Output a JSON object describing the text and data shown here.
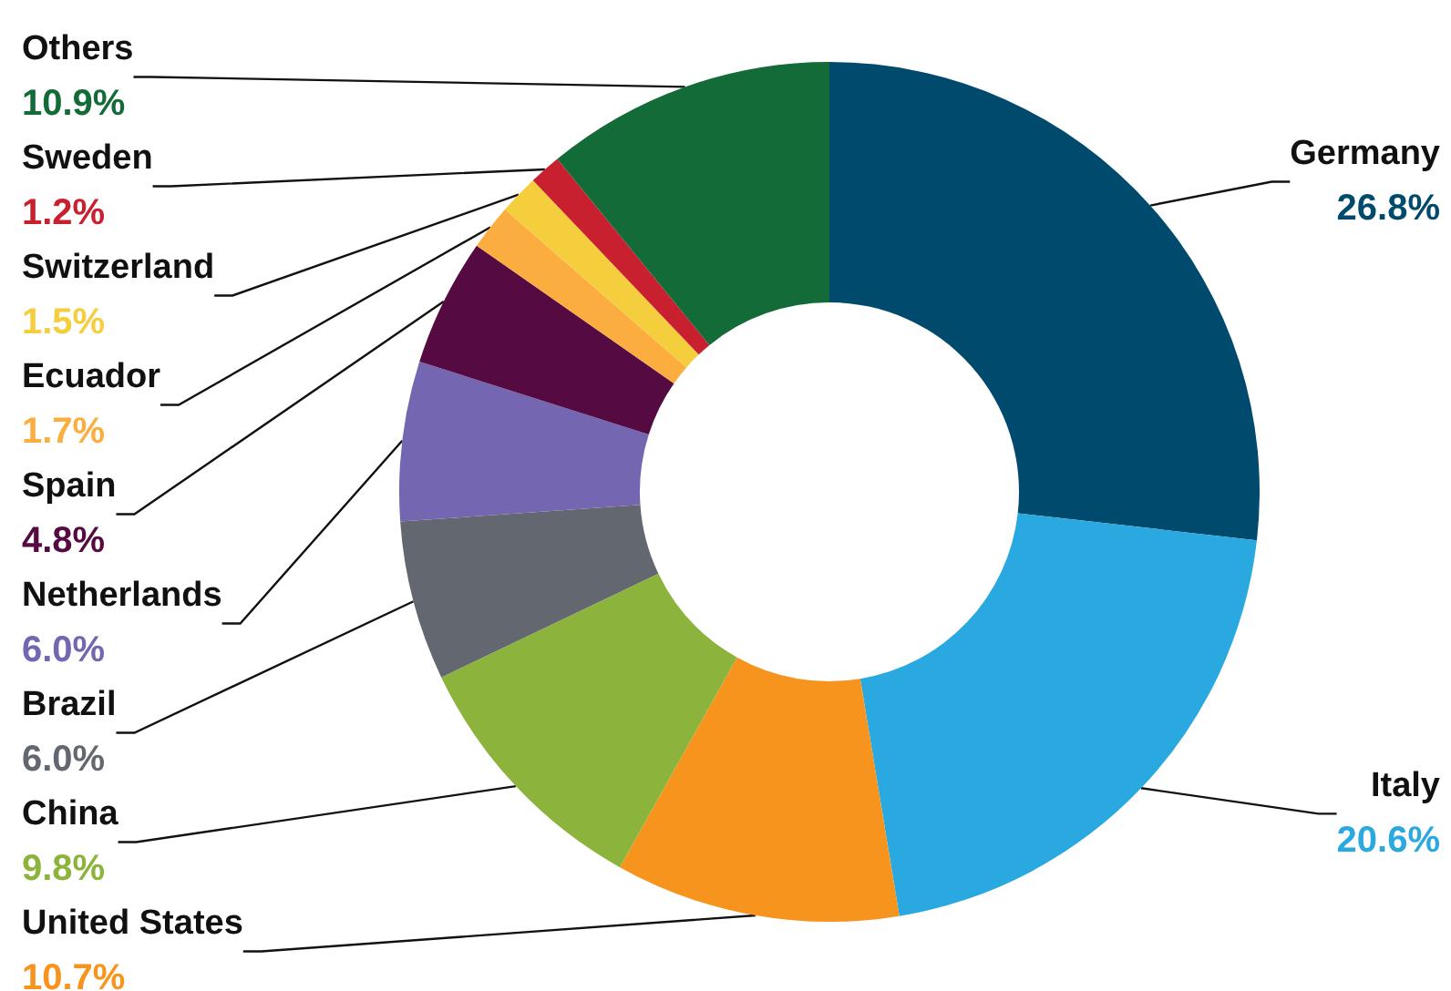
{
  "chart_data": {
    "type": "donut",
    "legend": false,
    "categories": [
      "Germany",
      "Italy",
      "United States",
      "China",
      "Brazil",
      "Netherlands",
      "Spain",
      "Ecuador",
      "Switzerland",
      "Sweden",
      "Others"
    ],
    "values": [
      26.8,
      20.6,
      10.7,
      9.8,
      6.0,
      6.0,
      4.8,
      1.7,
      1.5,
      1.2,
      10.9
    ],
    "value_labels": [
      "26.8%",
      "20.6%",
      "10.7%",
      "9.8%",
      "6.0%",
      "6.0%",
      "4.8%",
      "1.7%",
      "1.5%",
      "1.2%",
      "10.9%"
    ],
    "colors": [
      "#004a6e",
      "#29a9e0",
      "#f7941d",
      "#8cb43c",
      "#636870",
      "#7466b0",
      "#560a42",
      "#fbad3f",
      "#f5ce3e",
      "#c8202f",
      "#136b37"
    ]
  }
}
